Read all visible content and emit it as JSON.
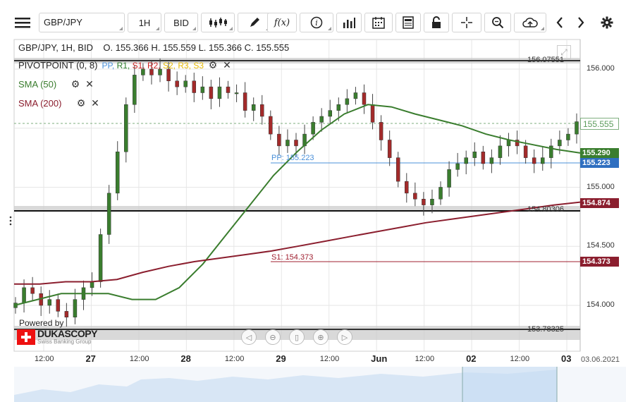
{
  "toolbar": {
    "symbol": "GBP/JPY",
    "timeframe": "1H",
    "side": "BID",
    "fx_label": "f(x)"
  },
  "chart": {
    "ohlc_line": "GBP/JPY, 1H, BID    O. 155.366 H. 155.559 L. 155.366 C. 155.555",
    "pivot_label": "PIVOTPOINT (0, 8)",
    "pivot_levels": [
      "PP",
      "R1",
      "S1",
      "R2",
      "S2",
      "R3",
      "S3"
    ],
    "pivot_level_colors": [
      "#4a90d9",
      "#2a7a2a",
      "#cc2222",
      "#cc2222",
      "#e6b800",
      "#e6b800",
      "#e6b800"
    ],
    "sma50_label": "SMA (50)",
    "sma200_label": "SMA (200)",
    "sma50_color": "#3a7d2e",
    "sma200_color": "#8b1e2e",
    "pp_line_label": "PP: 155.223",
    "s1_line_label": "S1: 154.373",
    "level_top": "156.07551",
    "level_mid": "154.80306",
    "level_bottom": "153.78325",
    "current_price": "155.555",
    "tag_sma50": "155.290",
    "tag_pp": "155.223",
    "tag_sma200": "154.874",
    "tag_s1": "154.373",
    "price_axis": [
      "156.000",
      "155.500",
      "155.000",
      "154.500",
      "154.000"
    ],
    "time_axis": [
      {
        "text": "12:00",
        "major": false
      },
      {
        "text": "27",
        "major": true
      },
      {
        "text": "12:00",
        "major": false
      },
      {
        "text": "28",
        "major": true
      },
      {
        "text": "12:00",
        "major": false
      },
      {
        "text": "29",
        "major": true
      },
      {
        "text": "12:00",
        "major": false
      },
      {
        "text": "Jun",
        "major": true
      },
      {
        "text": "12:00",
        "major": false
      },
      {
        "text": "02",
        "major": true
      },
      {
        "text": "12:00",
        "major": false
      },
      {
        "text": "03",
        "major": true
      }
    ],
    "date_stamp": "03.06.2021",
    "powered_by": "Powered by",
    "brand": "DUKASCOPY",
    "brand_sub": "Swiss Banking Group"
  },
  "chart_data": {
    "type": "candlestick",
    "symbol": "GBP/JPY",
    "interval": "1H",
    "ylim": [
      153.75,
      156.15
    ],
    "x": [
      "26 12:00",
      "27",
      "27 12:00",
      "28",
      "28 12:00",
      "29",
      "29 12:00",
      "Jun",
      "Jun 12:00",
      "02",
      "02 12:00",
      "03"
    ],
    "closes": [
      154.02,
      154.15,
      154.1,
      154.0,
      154.05,
      153.95,
      153.9,
      154.05,
      154.15,
      154.2,
      154.6,
      154.95,
      155.3,
      155.7,
      155.95,
      156.0,
      155.95,
      156.0,
      155.9,
      155.85,
      155.9,
      155.8,
      155.85,
      155.75,
      155.85,
      155.8,
      155.8,
      155.65,
      155.7,
      155.6,
      155.45,
      155.35,
      155.4,
      155.35,
      155.45,
      155.55,
      155.6,
      155.65,
      155.7,
      155.75,
      155.8,
      155.7,
      155.55,
      155.4,
      155.25,
      155.05,
      154.95,
      154.9,
      154.85,
      154.9,
      155.0,
      155.15,
      155.2,
      155.25,
      155.3,
      155.2,
      155.25,
      155.35,
      155.4,
      155.35,
      155.25,
      155.2,
      155.25,
      155.35,
      155.4,
      155.45,
      155.555
    ],
    "sma50": [
      154.0,
      154.05,
      154.1,
      154.1,
      154.1,
      154.05,
      154.05,
      154.15,
      154.35,
      154.6,
      154.85,
      155.1,
      155.3,
      155.48,
      155.62,
      155.7,
      155.68,
      155.62,
      155.57,
      155.52,
      155.45,
      155.4,
      155.36,
      155.32,
      155.29
    ],
    "sma200": [
      154.18,
      154.18,
      154.2,
      154.2,
      154.22,
      154.28,
      154.33,
      154.37,
      154.4,
      154.43,
      154.46,
      154.5,
      154.54,
      154.58,
      154.62,
      154.66,
      154.7,
      154.73,
      154.76,
      154.79,
      154.82,
      154.85,
      154.874
    ],
    "pivots": {
      "PP": 155.223,
      "S1": 154.373
    }
  }
}
